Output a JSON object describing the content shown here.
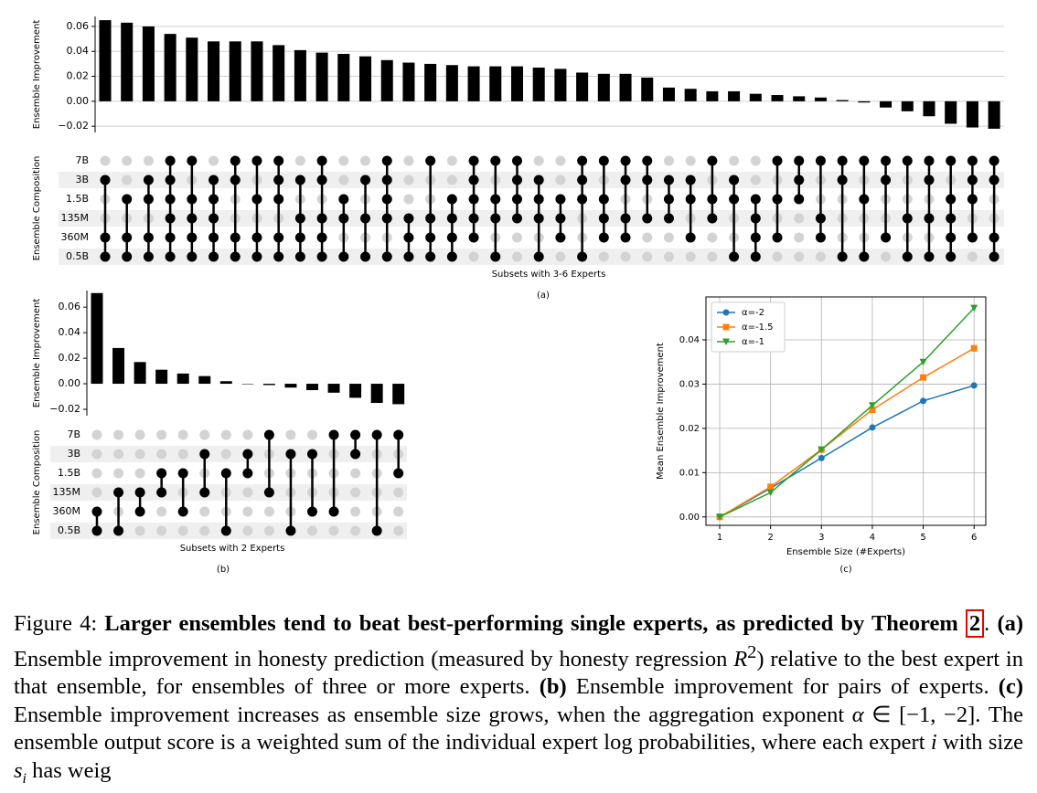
{
  "chart_data": [
    {
      "type": "upset",
      "y_label": "Ensemble Improvement",
      "matrix_label": "Ensemble Composition",
      "x_label": "Subsets with 3-6 Experts",
      "panel_label": "(a)",
      "values": [
        0.065,
        0.063,
        0.06,
        0.054,
        0.051,
        0.048,
        0.048,
        0.048,
        0.045,
        0.041,
        0.039,
        0.038,
        0.036,
        0.033,
        0.031,
        0.03,
        0.029,
        0.028,
        0.028,
        0.028,
        0.027,
        0.026,
        0.023,
        0.022,
        0.022,
        0.019,
        0.011,
        0.01,
        0.008,
        0.008,
        0.006,
        0.005,
        0.004,
        0.003,
        0.001,
        -0.001,
        -0.005,
        -0.008,
        -0.012,
        -0.018,
        -0.021,
        -0.022
      ],
      "color": "#000000",
      "ylim": [
        -0.025,
        0.068
      ],
      "yticks": [
        {
          "value": -0.02,
          "label": "−0.02"
        },
        {
          "value": 0,
          "label": "0.00"
        },
        {
          "value": 0.02,
          "label": "0.02"
        },
        {
          "value": 0.04,
          "label": "0.04"
        },
        {
          "value": 0.06,
          "label": "0.06"
        }
      ],
      "grid": true,
      "rows": [
        "7B",
        "3B",
        "1.5B",
        "135M",
        "360M",
        "0.5B"
      ],
      "sets": [
        [
          1,
          4,
          5
        ],
        [
          2,
          4,
          5
        ],
        [
          1,
          2,
          4,
          5
        ],
        [
          0,
          1,
          2,
          3,
          4,
          5
        ],
        [
          0,
          2,
          3,
          4,
          5
        ],
        [
          1,
          2,
          3,
          4,
          5
        ],
        [
          0,
          1,
          4,
          5
        ],
        [
          0,
          2,
          4,
          5
        ],
        [
          0,
          1,
          2,
          4,
          5
        ],
        [
          1,
          3,
          4,
          5
        ],
        [
          0,
          1,
          3,
          4,
          5
        ],
        [
          2,
          3,
          5
        ],
        [
          1,
          3,
          5
        ],
        [
          0,
          1,
          2,
          3,
          5
        ],
        [
          3,
          4,
          5
        ],
        [
          0,
          3,
          4,
          5
        ],
        [
          2,
          3,
          4,
          5
        ],
        [
          0,
          1,
          2,
          3,
          4
        ],
        [
          0,
          2,
          3,
          5
        ],
        [
          0,
          1,
          2,
          3
        ],
        [
          1,
          2,
          3,
          5
        ],
        [
          2,
          3,
          4
        ],
        [
          0,
          1,
          2,
          5
        ],
        [
          0,
          2,
          3,
          4
        ],
        [
          0,
          1,
          3,
          4
        ],
        [
          0,
          1,
          3
        ],
        [
          1,
          2,
          3
        ],
        [
          1,
          2,
          4
        ],
        [
          0,
          2,
          3
        ],
        [
          1,
          2,
          5
        ],
        [
          2,
          3,
          4,
          5
        ],
        [
          0,
          2,
          4
        ],
        [
          0,
          1,
          2
        ],
        [
          0,
          3,
          4
        ],
        [
          0,
          1,
          5
        ],
        [
          0,
          2,
          5
        ],
        [
          0,
          1,
          4
        ],
        [
          0,
          3,
          5
        ],
        [
          0,
          1,
          3,
          5
        ],
        [
          0,
          2,
          3,
          4,
          5
        ],
        [
          0,
          1,
          2,
          4
        ],
        [
          0,
          1,
          4,
          5
        ]
      ]
    },
    {
      "type": "upset",
      "y_label": "Ensemble Improvement",
      "matrix_label": "Ensemble Composition",
      "x_label": "Subsets with 2 Experts",
      "panel_label": "(b)",
      "values": [
        0.071,
        0.028,
        0.017,
        0.011,
        0.008,
        0.006,
        0.002,
        0.0,
        -0.001,
        -0.003,
        -0.005,
        -0.007,
        -0.011,
        -0.015,
        -0.016
      ],
      "color": "#000000",
      "ylim": [
        -0.025,
        0.073
      ],
      "yticks": [
        {
          "value": -0.02,
          "label": "−0.02"
        },
        {
          "value": 0,
          "label": "0.00"
        },
        {
          "value": 0.02,
          "label": "0.02"
        },
        {
          "value": 0.04,
          "label": "0.04"
        },
        {
          "value": 0.06,
          "label": "0.06"
        }
      ],
      "grid": false,
      "rows": [
        "7B",
        "3B",
        "1.5B",
        "135M",
        "360M",
        "0.5B"
      ],
      "sets": [
        [
          4,
          5
        ],
        [
          3,
          5
        ],
        [
          3,
          4
        ],
        [
          2,
          3
        ],
        [
          2,
          4
        ],
        [
          1,
          3
        ],
        [
          2,
          5
        ],
        [
          1,
          2
        ],
        [
          0,
          3
        ],
        [
          1,
          5
        ],
        [
          1,
          4
        ],
        [
          0,
          4
        ],
        [
          0,
          1
        ],
        [
          0,
          5
        ],
        [
          0,
          2
        ]
      ]
    },
    {
      "type": "line",
      "x_label": "Ensemble Size (#Experts)",
      "y_label": "Mean Ensemble Improvement",
      "panel_label": "(c)",
      "x": [
        1,
        2,
        3,
        4,
        5,
        6
      ],
      "xlim": [
        0.73,
        6.23
      ],
      "xticks": [
        1,
        2,
        3,
        4,
        5,
        6
      ],
      "ylim": [
        -0.0019,
        0.0497
      ],
      "yticks": [
        {
          "value": 0,
          "label": "0.00"
        },
        {
          "value": 0.01,
          "label": "0.01"
        },
        {
          "value": 0.02,
          "label": "0.02"
        },
        {
          "value": 0.03,
          "label": "0.03"
        },
        {
          "value": 0.04,
          "label": "0.04"
        }
      ],
      "grid": true,
      "legend": "upper left",
      "series": [
        {
          "name": "α=-2",
          "color": "#1f77b4",
          "marker": "o",
          "values": [
            0,
            0.0065,
            0.0133,
            0.0202,
            0.0262,
            0.0297
          ]
        },
        {
          "name": "α=-1.5",
          "color": "#ff7f0e",
          "marker": "s",
          "values": [
            0,
            0.0068,
            0.0152,
            0.0242,
            0.0315,
            0.0381
          ]
        },
        {
          "name": "α=-1",
          "color": "#2ca02c",
          "marker": "v",
          "values": [
            0,
            0.0055,
            0.0152,
            0.0252,
            0.035,
            0.0472
          ]
        }
      ]
    }
  ],
  "caption": [
    {
      "text": "Figure 4: "
    },
    {
      "text": "Larger ensembles tend to beat best-performing single experts, as predicted by Theorem",
      "style": "bold"
    },
    {
      "text": " "
    },
    {
      "text": "2",
      "style": "ref"
    },
    {
      "text": ". "
    },
    {
      "text": "(a)",
      "style": "bold"
    },
    {
      "text": " Ensemble improvement in honesty prediction (measured by honesty regression "
    },
    {
      "text": "R",
      "style": "italic"
    },
    {
      "text": "2",
      "style": "sup"
    },
    {
      "text": ") relative to the best expert in that ensemble, for ensembles of three or more experts. "
    },
    {
      "text": "(b)",
      "style": "bold"
    },
    {
      "text": " Ensemble improvement for pairs of experts. "
    },
    {
      "text": "(c)",
      "style": "bold"
    },
    {
      "text": " Ensemble improvement increases as ensemble size grows, when the aggregation exponent "
    },
    {
      "text": "α",
      "style": "italic"
    },
    {
      "text": " ∈ [−1, −2]. The ensemble output score is a weighted sum of the individual expert log probabilities, where each expert "
    },
    {
      "text": "i",
      "style": "italic"
    },
    {
      "text": " with size "
    },
    {
      "text": "s",
      "style": "italic"
    },
    {
      "text": "i",
      "style": "sub"
    },
    {
      "text": " has weig"
    }
  ]
}
